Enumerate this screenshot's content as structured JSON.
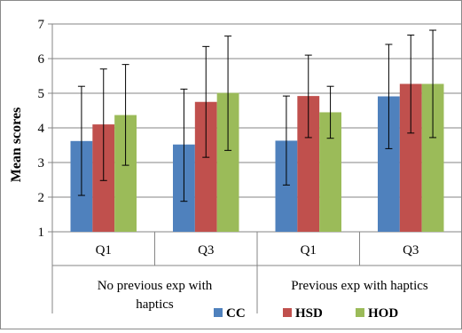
{
  "chart_data": {
    "type": "bar",
    "ylabel": "Mean scores",
    "xlabel": "",
    "ylim": [
      1,
      7
    ],
    "yticks": [
      1,
      2,
      3,
      4,
      5,
      6,
      7
    ],
    "grid": true,
    "legend_position": "bottom-right",
    "categories": [
      "Q1",
      "Q3",
      "Q1",
      "Q3"
    ],
    "groups": [
      {
        "label": "No previous exp with haptics",
        "categories": [
          "Q1",
          "Q3"
        ]
      },
      {
        "label": "Previous exp with haptics",
        "categories": [
          "Q1",
          "Q3"
        ]
      }
    ],
    "series": [
      {
        "name": "CC",
        "color": "#4f81bd",
        "values": [
          3.62,
          3.52,
          3.63,
          4.91
        ],
        "err_low": [
          2.05,
          1.88,
          2.35,
          3.4
        ],
        "err_high": [
          5.2,
          5.12,
          4.92,
          6.41
        ]
      },
      {
        "name": "HSD",
        "color": "#c0504d",
        "values": [
          4.1,
          4.75,
          4.92,
          5.27
        ],
        "err_low": [
          2.48,
          3.15,
          3.72,
          3.85
        ],
        "err_high": [
          5.7,
          6.35,
          6.1,
          6.68
        ]
      },
      {
        "name": "HOD",
        "color": "#9bbb59",
        "values": [
          4.37,
          5.01,
          4.45,
          5.27
        ],
        "err_low": [
          2.92,
          3.35,
          3.7,
          3.72
        ],
        "err_high": [
          5.83,
          6.65,
          5.2,
          6.82
        ]
      }
    ]
  }
}
